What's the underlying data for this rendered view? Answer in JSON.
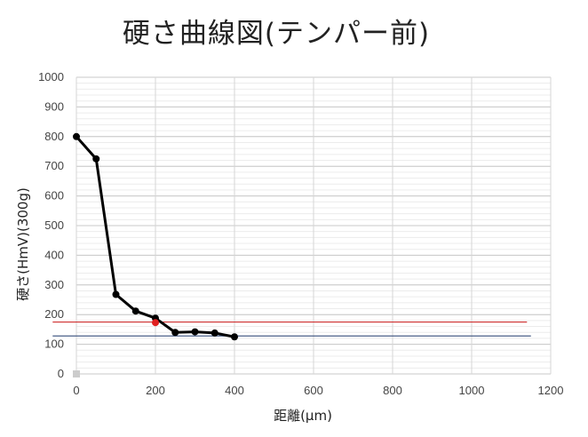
{
  "chart_data": {
    "type": "line",
    "title": "硬さ曲線図(テンパー前)",
    "xlabel": "距離(μm)",
    "ylabel": "硬さ(HmV)(300g)",
    "xlim": [
      0,
      1200
    ],
    "ylim": [
      0,
      1000
    ],
    "x_ticks": [
      0,
      200,
      400,
      600,
      800,
      1000,
      1200
    ],
    "y_ticks": [
      0,
      100,
      200,
      300,
      400,
      500,
      600,
      700,
      800,
      900,
      1000
    ],
    "grid": true,
    "legend": "none",
    "series": [
      {
        "color": "#000000",
        "x": [
          0,
          50,
          100,
          150,
          200,
          250,
          300,
          350,
          400
        ],
        "y": [
          800,
          725,
          268,
          212,
          188,
          140,
          142,
          138,
          125
        ]
      }
    ],
    "highlight_point": {
      "x": 200,
      "y": 173,
      "color": "#e02020"
    },
    "origin_marker": {
      "x": 0,
      "y": 0,
      "color": "#cccccc"
    },
    "reference_lines": [
      {
        "y": 175,
        "x_start": -60,
        "x_end": 1140,
        "color": "#d03030"
      },
      {
        "y": 128,
        "x_start": -60,
        "x_end": 1150,
        "color": "#4a5f88"
      }
    ]
  }
}
